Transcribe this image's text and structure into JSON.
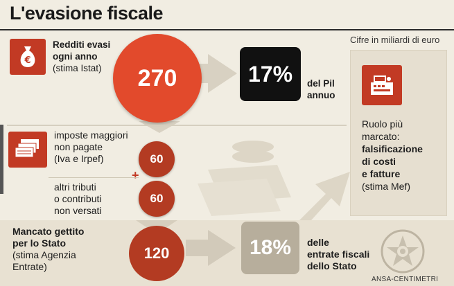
{
  "title": "L'evasione fiscale",
  "unit_note": "Cifre in miliardi di euro",
  "row1": {
    "label_bold_1": "Redditi evasi",
    "label_bold_2": "ogni anno",
    "label_note": "(stima Istat)",
    "value": "270",
    "pct": "17%",
    "pct_label_1": "del Pil",
    "pct_label_2": "annuo"
  },
  "row2": {
    "label_1": "imposte maggiori",
    "label_2": "non pagate",
    "label_3": "(Iva e Irpef)",
    "value": "60",
    "plus": "+"
  },
  "row3": {
    "label_1": "altri tributi",
    "label_2": "o contributi",
    "label_3": "non versati",
    "value": "60"
  },
  "row4": {
    "label_bold_1": "Mancato gettito",
    "label_bold_2": "per lo Stato",
    "label_note_1": "(stima Agenzia",
    "label_note_2": "Entrate)",
    "value": "120",
    "pct": "18%",
    "pct_label_1": "delle",
    "pct_label_2": "entrate fiscali",
    "pct_label_3": "dello Stato"
  },
  "side_panel": {
    "line1": "Ruolo più",
    "line2": "marcato:",
    "line3": "falsificazione",
    "line4": "di costi",
    "line5": "e fatture",
    "line6": "(stima Mef)"
  },
  "credit": "ANSA-CENTIMETRI",
  "icons": {
    "money_bag": "money-bag-euro-icon",
    "banknotes": "banknote-stack-icon",
    "cash_register": "cash-register-icon",
    "emblem": "italian-republic-emblem-icon"
  },
  "colors": {
    "accent": "#e24a2c",
    "dark_red": "#b33b22",
    "box_red": "#c23a24",
    "black_box": "#111111",
    "grey_box": "#b7ae9c",
    "background": "#f1ede2"
  },
  "chart_data": {
    "type": "table",
    "unit": "Cifre in miliardi di euro",
    "rows": [
      {
        "label": "Redditi evasi ogni anno (stima Istat)",
        "value": 270,
        "share": "17%",
        "share_of": "del Pil annuo"
      },
      {
        "label": "imposte maggiori non pagate (Iva e Irpef)",
        "value": 60
      },
      {
        "label": "altri tributi o contributi non versati",
        "value": 60
      },
      {
        "label": "Mancato gettito per lo Stato (stima Agenzia Entrate)",
        "value": 120,
        "share": "18%",
        "share_of": "delle entrate fiscali dello Stato"
      }
    ]
  }
}
